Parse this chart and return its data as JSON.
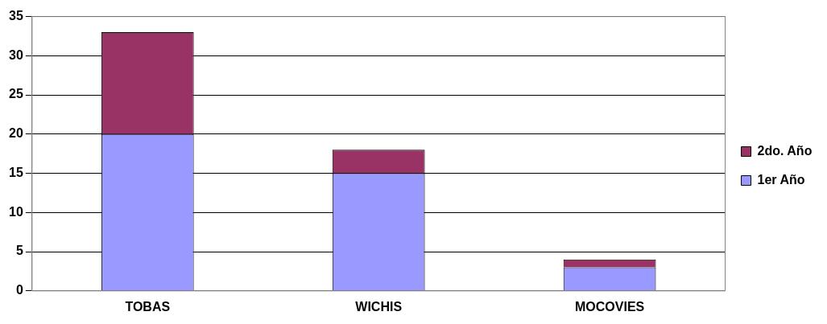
{
  "chart_data": {
    "type": "bar",
    "stacked": true,
    "categories": [
      "TOBAS",
      "WICHIS",
      "MOCOVIES"
    ],
    "series": [
      {
        "name": "1er Año",
        "color": "#9999ff",
        "values": [
          20,
          15,
          3
        ]
      },
      {
        "name": "2do. Año",
        "color": "#993366",
        "values": [
          13,
          3,
          1
        ]
      }
    ],
    "ylim": [
      0,
      35
    ],
    "yticks": [
      0,
      5,
      10,
      15,
      20,
      25,
      30,
      35
    ],
    "grid": "y",
    "legend": "right"
  }
}
